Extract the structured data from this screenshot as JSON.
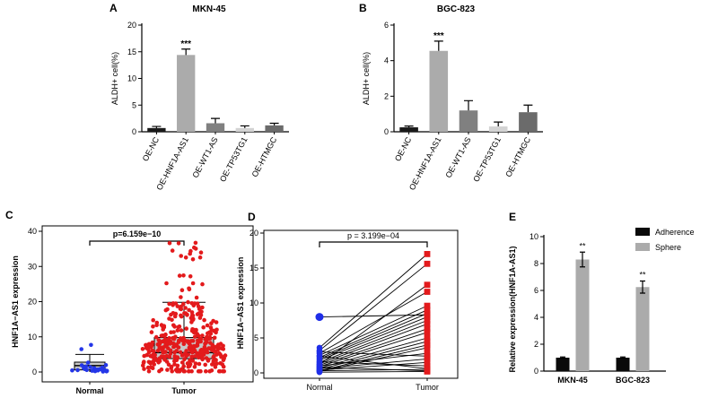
{
  "chart_data": [
    {
      "panel": "A",
      "type": "bar",
      "title": "MKN-45",
      "ylabel": "ALDH+ cell(%)",
      "ylim": [
        0,
        20
      ],
      "yticks": [
        0,
        5,
        10,
        15,
        20
      ],
      "categories": [
        "OE-NC",
        "OE-HNF1A-AS1",
        "OE-WT1-AS",
        "OE-TP53TG1",
        "OE-HTMGC"
      ],
      "values": [
        0.7,
        14.4,
        1.6,
        0.7,
        1.2
      ],
      "errors": [
        0.3,
        1.1,
        0.9,
        0.4,
        0.4
      ],
      "colors": [
        "#1a1a1a",
        "#ababab",
        "#808080",
        "#d3d3d3",
        "#6b6b6b"
      ],
      "annotations": [
        {
          "category": "OE-HNF1A-AS1",
          "text": "***"
        }
      ]
    },
    {
      "panel": "B",
      "type": "bar",
      "title": "BGC-823",
      "ylabel": "ALDH+ cell(%)",
      "ylim": [
        0,
        6
      ],
      "yticks": [
        0,
        2,
        4,
        6
      ],
      "categories": [
        "OE-NC",
        "OE-HNF1A-AS1",
        "OE-WT1-AS",
        "OE-TP53TG1",
        "OE-HTMGC"
      ],
      "values": [
        0.25,
        4.55,
        1.2,
        0.3,
        1.1
      ],
      "errors": [
        0.07,
        0.55,
        0.55,
        0.25,
        0.4
      ],
      "colors": [
        "#1a1a1a",
        "#ababab",
        "#808080",
        "#d3d3d3",
        "#6b6b6b"
      ],
      "annotations": [
        {
          "category": "OE-HNF1A-AS1",
          "text": "***"
        }
      ]
    },
    {
      "panel": "C",
      "type": "scatter",
      "subtype": "boxplot with jittered points",
      "ylabel": "HNF1A−AS1 expression",
      "ylim": [
        0,
        40
      ],
      "yticks": [
        0,
        10,
        20,
        30,
        40
      ],
      "categories": [
        "Normal",
        "Tumor"
      ],
      "box": [
        {
          "name": "Normal",
          "min": 0,
          "q1": 0.6,
          "median": 1.8,
          "q3": 2.8,
          "max": 5,
          "color": "#2436e8"
        },
        {
          "name": "Tumor",
          "min": 0,
          "q1": 3.8,
          "median": 5.5,
          "q3": 9.8,
          "max": 19.8,
          "color": "#e31a1c"
        }
      ],
      "n_points": [
        28,
        375
      ],
      "pvalue_text": "p=6.159e−10"
    },
    {
      "panel": "D",
      "type": "line",
      "subtype": "paired points",
      "ylabel": "HNF1A−AS1 expression",
      "ylim": [
        0,
        20
      ],
      "yticks": [
        0,
        5,
        10,
        15,
        20
      ],
      "categories": [
        "Normal",
        "Tumor"
      ],
      "normal": [
        8.0,
        3.6,
        3.2,
        2.8,
        2.5,
        2.2,
        2.0,
        1.8,
        1.5,
        1.3,
        1.1,
        0.9,
        0.7,
        0.5,
        0.3,
        0.2,
        1.0,
        3.0,
        0.6,
        0.4,
        1.6,
        2.4,
        0.8,
        0.1,
        1.2,
        0.3
      ],
      "tumor": [
        8.3,
        17.0,
        15.6,
        11.6,
        9.6,
        9.0,
        8.5,
        8.0,
        7.5,
        7.0,
        6.3,
        5.8,
        5.0,
        4.5,
        4.0,
        3.6,
        2.8,
        2.4,
        2.0,
        1.5,
        1.0,
        0.6,
        0.3,
        0.2,
        12.6,
        0.5
      ],
      "colors": {
        "normal": "#1f2ee8",
        "tumor": "#e31a1c"
      },
      "pvalue_text": "p = 3.199e−04"
    },
    {
      "panel": "E",
      "type": "bar",
      "ylabel": "Relative expression(HNF1A-AS1)",
      "ylim": [
        0,
        10
      ],
      "yticks": [
        0,
        2,
        4,
        6,
        8,
        10
      ],
      "categories": [
        "MKN-45",
        "BGC-823"
      ],
      "series": [
        {
          "name": "Adherence",
          "values": [
            1.0,
            1.0
          ],
          "errors": [
            0.05,
            0.05
          ],
          "color": "#0a0a0a"
        },
        {
          "name": "Sphere",
          "values": [
            8.3,
            6.25
          ],
          "errors": [
            0.55,
            0.45
          ],
          "color": "#ababab"
        }
      ],
      "annotations": [
        {
          "category": "MKN-45",
          "series": "Sphere",
          "text": "**"
        },
        {
          "category": "BGC-823",
          "series": "Sphere",
          "text": "**"
        }
      ],
      "legend": "top-right"
    }
  ]
}
